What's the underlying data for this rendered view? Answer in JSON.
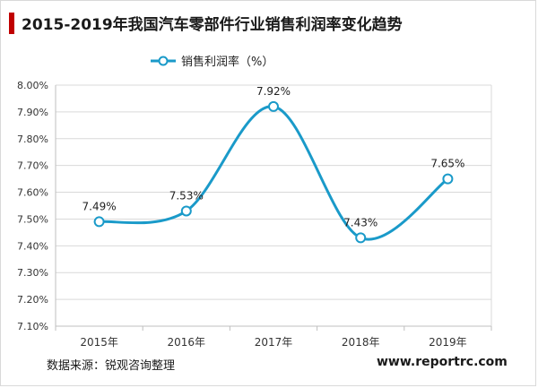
{
  "title": "2015-2019年我国汽车零部件行业销售利润率变化趋势",
  "source": "数据来源：锐观咨询整理",
  "website": "www.reportrc.com",
  "colors": {
    "line": "#1a9ac9",
    "title_accent": "#c00000",
    "grid": "#d9d9d9"
  },
  "chart_data": {
    "type": "line",
    "title": "2015-2019年我国汽车零部件行业销售利润率变化趋势",
    "categories": [
      "2015年",
      "2016年",
      "2017年",
      "2018年",
      "2019年"
    ],
    "series": [
      {
        "name": "销售利润率（%）",
        "values": [
          7.49,
          7.53,
          7.92,
          7.43,
          7.65
        ],
        "labels": [
          "7.49%",
          "7.53%",
          "7.92%",
          "7.43%",
          "7.65%"
        ]
      }
    ],
    "yticks": [
      "7.10%",
      "7.20%",
      "7.30%",
      "7.40%",
      "7.50%",
      "7.60%",
      "7.70%",
      "7.80%",
      "7.90%",
      "8.00%"
    ],
    "ylim": [
      7.1,
      8.0
    ],
    "grid": true,
    "legend": "top"
  }
}
